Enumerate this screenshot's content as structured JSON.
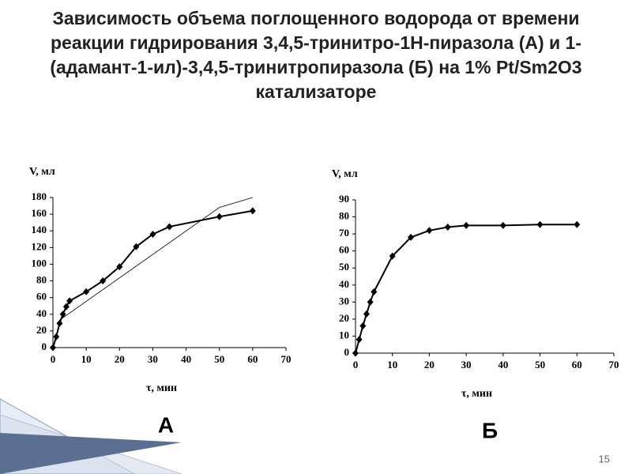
{
  "slide": {
    "title": "Зависимость объема поглощенного водорода от времени реакции гидрирования 3,4,5-тринитро-1H-пиразола (А) и 1-(адамант-1-ил)-3,4,5-тринитропиразола (Б) на 1% Pt/Sm2O3 катализаторе",
    "page_number": "15"
  },
  "chart_data": [
    {
      "type": "line",
      "caption": "А",
      "xlabel": "τ, мин",
      "ylabel": "V, мл",
      "x": [
        0,
        1,
        2,
        3,
        4,
        5,
        10,
        15,
        20,
        25,
        30,
        35,
        50,
        60
      ],
      "series": [
        {
          "color": "#000000",
          "marker": "diamond",
          "width": 2,
          "values": [
            0,
            13,
            29,
            40,
            49,
            56,
            67,
            80,
            97,
            121,
            136,
            145,
            157,
            164
          ]
        },
        {
          "color": "#000000",
          "marker": "none",
          "width": 0.8,
          "x": [
            2,
            50,
            60
          ],
          "values": [
            33,
            168,
            180
          ]
        }
      ],
      "xlim": [
        0,
        70
      ],
      "ylim": [
        0,
        180
      ],
      "xticks": [
        0,
        10,
        20,
        30,
        40,
        50,
        60,
        70
      ],
      "yticks": [
        0,
        20,
        40,
        60,
        80,
        100,
        120,
        140,
        160,
        180
      ],
      "grid": false
    },
    {
      "type": "line",
      "caption": "Б",
      "xlabel": "τ, мин",
      "ylabel": "V, мл",
      "x": [
        0,
        1,
        2,
        3,
        4,
        5,
        10,
        15,
        20,
        25,
        30,
        40,
        50,
        60
      ],
      "series": [
        {
          "color": "#000000",
          "marker": "diamond",
          "width": 2,
          "values": [
            0,
            8,
            16,
            23,
            30,
            36,
            57,
            68,
            72,
            74,
            75,
            75,
            75.5,
            75.5
          ]
        }
      ],
      "xlim": [
        0,
        70
      ],
      "ylim": [
        0,
        90
      ],
      "xticks": [
        0,
        10,
        20,
        30,
        40,
        50,
        60,
        70
      ],
      "yticks": [
        0,
        10,
        20,
        30,
        40,
        50,
        60,
        70,
        80,
        90
      ],
      "grid": false
    }
  ]
}
